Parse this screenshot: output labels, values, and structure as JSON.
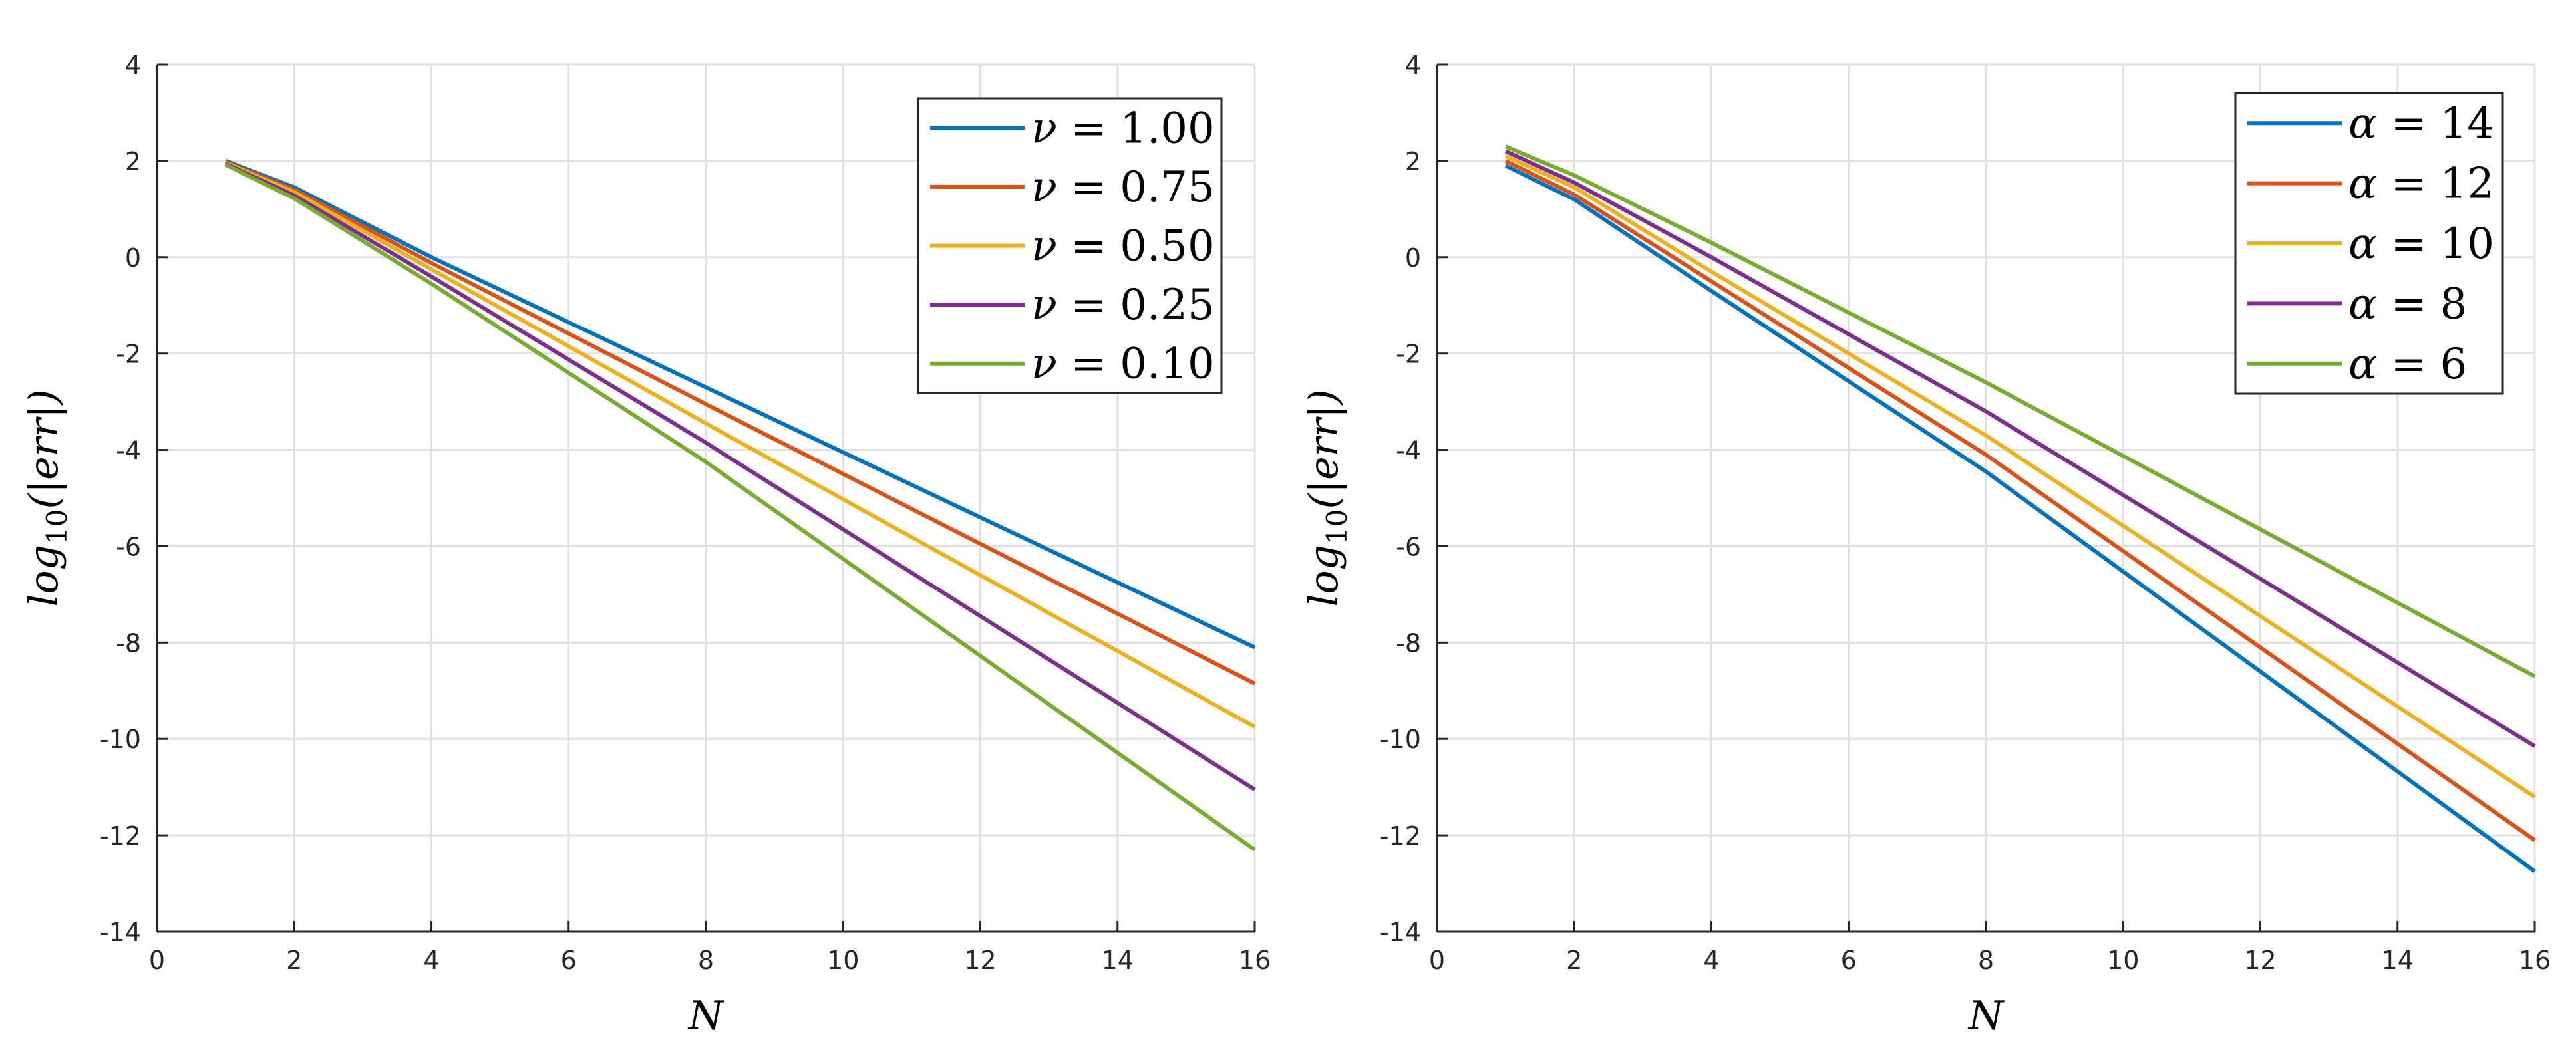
{
  "chart_data": [
    {
      "type": "line",
      "title": "",
      "xlabel": "N",
      "ylabel": "log10(|err|)",
      "xlim": [
        0,
        16
      ],
      "ylim": [
        -14,
        4
      ],
      "xticks": [
        0,
        2,
        4,
        6,
        8,
        10,
        12,
        14,
        16
      ],
      "yticks": [
        4,
        2,
        0,
        -2,
        -4,
        -6,
        -8,
        -10,
        -12,
        -14
      ],
      "xtick_labels": [
        "0",
        "2",
        "4",
        "6",
        "8",
        "10",
        "12",
        "14",
        "16"
      ],
      "ytick_labels": [
        "4",
        "2",
        "0",
        "-2",
        "-4",
        "-6",
        "-8",
        "-10",
        "-12",
        "-14"
      ],
      "grid": true,
      "legend_position": "top-right",
      "legend_symbol": "ν",
      "x": [
        1,
        2,
        4,
        8,
        16
      ],
      "series": [
        {
          "name": "ν = 1.00",
          "symbol": "ν",
          "value": "1.00",
          "color": "#0072BD",
          "values": [
            2.0,
            1.45,
            0.0,
            -2.7,
            -8.1
          ]
        },
        {
          "name": "ν = 0.75",
          "symbol": "ν",
          "value": "0.75",
          "color": "#D95319",
          "values": [
            1.98,
            1.4,
            -0.12,
            -3.05,
            -8.85
          ]
        },
        {
          "name": "ν = 0.50",
          "symbol": "ν",
          "value": "0.50",
          "color": "#EDB120",
          "values": [
            1.96,
            1.35,
            -0.25,
            -3.45,
            -9.75
          ]
        },
        {
          "name": "ν = 0.25",
          "symbol": "ν",
          "value": "0.25",
          "color": "#7E2F8E",
          "values": [
            1.94,
            1.28,
            -0.4,
            -3.85,
            -11.05
          ]
        },
        {
          "name": "ν = 0.10",
          "symbol": "ν",
          "value": "0.10",
          "color": "#77AC30",
          "values": [
            1.92,
            1.22,
            -0.55,
            -4.25,
            -12.3
          ]
        }
      ]
    },
    {
      "type": "line",
      "title": "",
      "xlabel": "N",
      "ylabel": "log10(|err|)",
      "xlim": [
        0,
        16
      ],
      "ylim": [
        -14,
        4
      ],
      "xticks": [
        0,
        2,
        4,
        6,
        8,
        10,
        12,
        14,
        16
      ],
      "yticks": [
        4,
        2,
        0,
        -2,
        -4,
        -6,
        -8,
        -10,
        -12,
        -14
      ],
      "xtick_labels": [
        "0",
        "2",
        "4",
        "6",
        "8",
        "10",
        "12",
        "14",
        "16"
      ],
      "ytick_labels": [
        "4",
        "2",
        "0",
        "-2",
        "-4",
        "-6",
        "-8",
        "-10",
        "-12",
        "-14"
      ],
      "grid": true,
      "legend_position": "top-right",
      "legend_symbol": "α",
      "x": [
        1,
        2,
        4,
        8,
        16
      ],
      "series": [
        {
          "name": "α = 14",
          "symbol": "α",
          "value": "14",
          "color": "#0072BD",
          "values": [
            1.9,
            1.2,
            -0.7,
            -4.45,
            -12.75
          ]
        },
        {
          "name": "α = 12",
          "symbol": "α",
          "value": "12",
          "color": "#D95319",
          "values": [
            2.0,
            1.3,
            -0.5,
            -4.1,
            -12.1
          ]
        },
        {
          "name": "α = 10",
          "symbol": "α",
          "value": "10",
          "color": "#EDB120",
          "values": [
            2.1,
            1.45,
            -0.3,
            -3.7,
            -11.2
          ]
        },
        {
          "name": "α = 8",
          "symbol": "α",
          "value": "8",
          "color": "#7E2F8E",
          "values": [
            2.2,
            1.55,
            0.0,
            -3.2,
            -10.15
          ]
        },
        {
          "name": "α = 6",
          "symbol": "α",
          "value": "6",
          "color": "#77AC30",
          "values": [
            2.3,
            1.7,
            0.3,
            -2.6,
            -8.7
          ]
        }
      ]
    }
  ]
}
